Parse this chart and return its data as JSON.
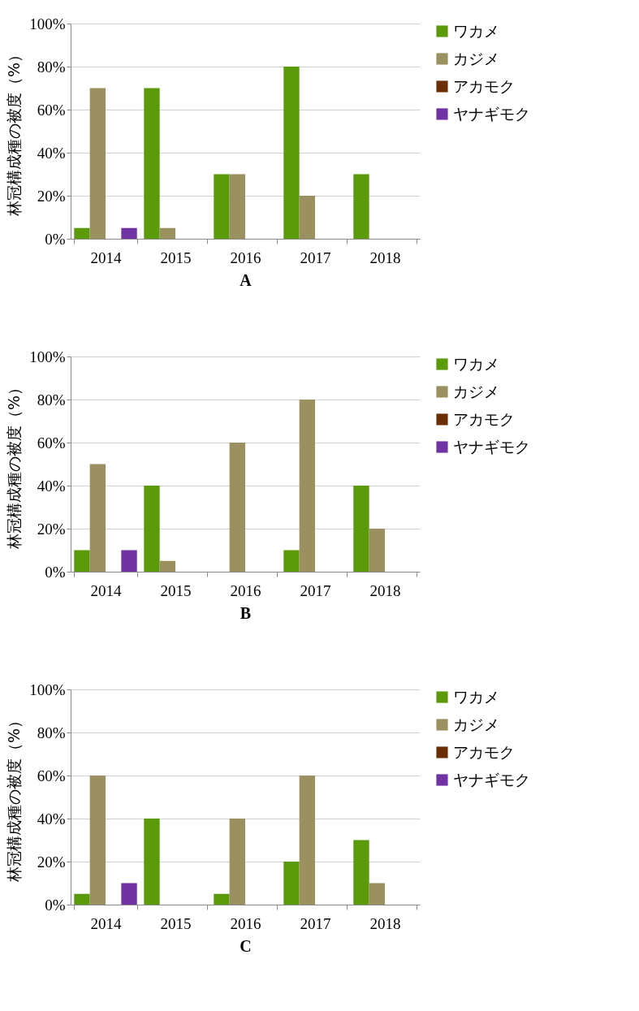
{
  "chart_data": [
    {
      "type": "bar",
      "xlabel": "A",
      "ylabel": "林冠構成種の被度（%）",
      "categories": [
        "2014",
        "2015",
        "2016",
        "2017",
        "2018"
      ],
      "ylim": [
        0,
        100
      ],
      "yticks": [
        {
          "value": 0,
          "label": "0%"
        },
        {
          "value": 20,
          "label": "20%"
        },
        {
          "value": 40,
          "label": "40%"
        },
        {
          "value": 60,
          "label": "60%"
        },
        {
          "value": 80,
          "label": "80%"
        },
        {
          "value": 100,
          "label": "100%"
        }
      ],
      "grid": "y",
      "legend": "right",
      "series": [
        {
          "name": "ワカメ",
          "color": "#5b9a0a",
          "values": [
            5,
            70,
            30,
            80,
            30
          ]
        },
        {
          "name": "カジメ",
          "color": "#9b9060",
          "values": [
            70,
            5,
            30,
            20,
            0
          ]
        },
        {
          "name": "アカモク",
          "color": "#6b2f05",
          "values": [
            0,
            0,
            0,
            0,
            0
          ]
        },
        {
          "name": "ヤナギモク",
          "color": "#7132a3",
          "values": [
            5,
            0,
            0,
            0,
            0
          ]
        }
      ]
    },
    {
      "type": "bar",
      "xlabel": "B",
      "ylabel": "林冠構成種の被度（%）",
      "categories": [
        "2014",
        "2015",
        "2016",
        "2017",
        "2018"
      ],
      "ylim": [
        0,
        100
      ],
      "yticks": [
        {
          "value": 0,
          "label": "0%"
        },
        {
          "value": 20,
          "label": "20%"
        },
        {
          "value": 40,
          "label": "40%"
        },
        {
          "value": 60,
          "label": "60%"
        },
        {
          "value": 80,
          "label": "80%"
        },
        {
          "value": 100,
          "label": "100%"
        }
      ],
      "grid": "y",
      "legend": "right",
      "series": [
        {
          "name": "ワカメ",
          "color": "#5b9a0a",
          "values": [
            10,
            40,
            0,
            10,
            40
          ]
        },
        {
          "name": "カジメ",
          "color": "#9b9060",
          "values": [
            50,
            5,
            60,
            80,
            20
          ]
        },
        {
          "name": "アカモク",
          "color": "#6b2f05",
          "values": [
            0,
            0,
            0,
            0,
            0
          ]
        },
        {
          "name": "ヤナギモク",
          "color": "#7132a3",
          "values": [
            10,
            0,
            0,
            0,
            0
          ]
        }
      ]
    },
    {
      "type": "bar",
      "xlabel": "C",
      "ylabel": "林冠構成種の被度（%）",
      "categories": [
        "2014",
        "2015",
        "2016",
        "2017",
        "2018"
      ],
      "ylim": [
        0,
        100
      ],
      "yticks": [
        {
          "value": 0,
          "label": "0%"
        },
        {
          "value": 20,
          "label": "20%"
        },
        {
          "value": 40,
          "label": "40%"
        },
        {
          "value": 60,
          "label": "60%"
        },
        {
          "value": 80,
          "label": "80%"
        },
        {
          "value": 100,
          "label": "100%"
        }
      ],
      "grid": "y",
      "legend": "right",
      "series": [
        {
          "name": "ワカメ",
          "color": "#5b9a0a",
          "values": [
            5,
            40,
            5,
            20,
            30
          ]
        },
        {
          "name": "カジメ",
          "color": "#9b9060",
          "values": [
            60,
            0,
            40,
            60,
            10
          ]
        },
        {
          "name": "アカモク",
          "color": "#6b2f05",
          "values": [
            0,
            0,
            0,
            0,
            0
          ]
        },
        {
          "name": "ヤナギモク",
          "color": "#7132a3",
          "values": [
            10,
            0,
            0,
            0,
            0
          ]
        }
      ]
    }
  ]
}
